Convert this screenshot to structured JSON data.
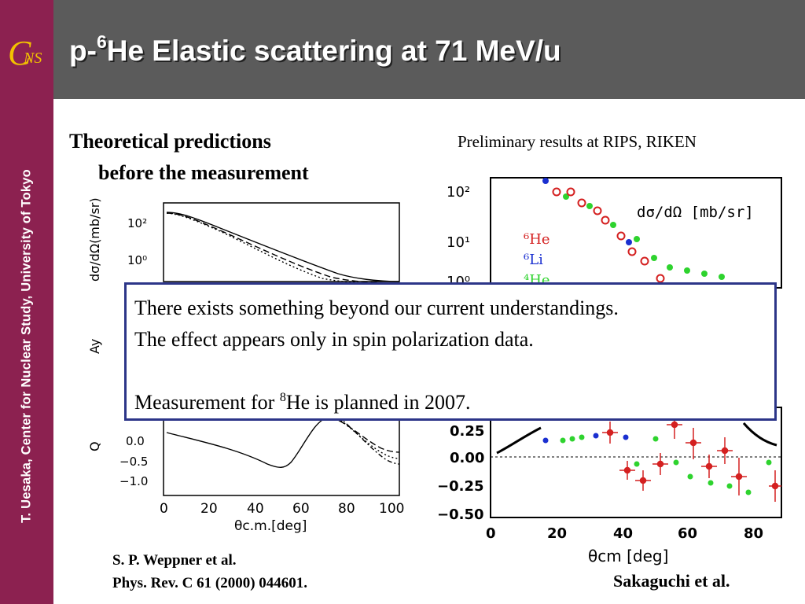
{
  "sidebar": {
    "logo": "C NS",
    "vertical_text": "T. Uesaka, Center for Nuclear Study, University of Tokyo"
  },
  "title": {
    "prefix": "p-",
    "superscript": "6",
    "rest": "He Elastic scattering at 71 MeV/u"
  },
  "left_heading": {
    "line1": "Theoretical predictions",
    "line2": "before the measurement"
  },
  "right_heading": "Preliminary results at RIPS, RIKEN",
  "left_plot": {
    "ylabel_top": "dσ/dΩ(mb/sr)",
    "ylabel_mid": "Ay",
    "ylabel_bottom": "Q",
    "yticks_top": [
      "10²",
      "10⁰"
    ],
    "yticks_bottom": [
      "0.0",
      "−0.5",
      "−1.0"
    ],
    "xticks": [
      "0",
      "20",
      "40",
      "60",
      "80",
      "100"
    ],
    "xlabel": "θc.m.[deg]"
  },
  "right_plot": {
    "yticks_top": [
      "10²",
      "10¹",
      "10⁰"
    ],
    "legend_label": "dσ/dΩ [mb/sr]",
    "legend_items": [
      {
        "label": "⁶He",
        "color": "#d42020"
      },
      {
        "label": "⁶Li",
        "color": "#1a2fd0"
      },
      {
        "label": "⁴He",
        "color": "#2ed32e"
      }
    ],
    "yticks_bottom": [
      "0.25",
      "0.00",
      "−0.25",
      "−0.50"
    ],
    "xticks": [
      "0",
      "20",
      "40",
      "60",
      "80"
    ],
    "xlabel": "θcm [deg]"
  },
  "overlay": {
    "line1": "There exists something beyond our current understandings.",
    "line2": "The effect appears only in spin polarization data.",
    "line3_prefix": "Measurement for ",
    "line3_sup": "8",
    "line3_rest": "He is planned in 2007."
  },
  "ref_left": {
    "line1": "S. P. Weppner et al.",
    "line2": "Phys. Rev. C 61 (2000) 044601."
  },
  "ref_right": "Sakaguchi et al."
}
